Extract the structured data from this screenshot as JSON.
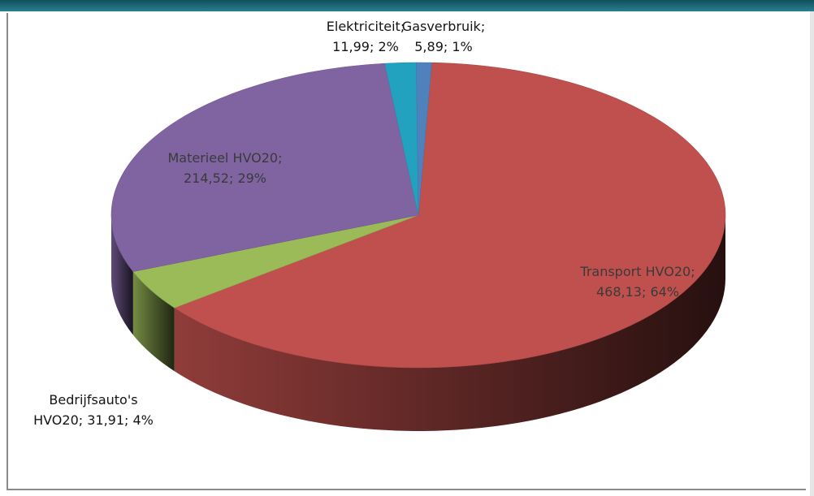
{
  "chart_data": {
    "type": "pie",
    "style": "3d",
    "slices": [
      {
        "label": "Transport HVO20",
        "value": 468.13,
        "percent": "64%",
        "display_value": "468,13",
        "color": "#c0504d"
      },
      {
        "label": "Bedrijfsauto's HVO20",
        "value": 31.91,
        "percent": "4%",
        "display_value": "31,91",
        "color": "#9bbb59"
      },
      {
        "label": "Materieel HVO20",
        "value": 214.52,
        "percent": "29%",
        "display_value": "214,52",
        "color": "#8064a2"
      },
      {
        "label": "Elektriciteit",
        "value": 11.99,
        "percent": "2%",
        "display_value": "11,99",
        "color": "#23a2bf"
      },
      {
        "label": "Gasverbruik",
        "value": 5.89,
        "percent": "1%",
        "display_value": "5,89",
        "color": "#4f81bd"
      }
    ],
    "labels": {
      "transport": {
        "line1": "Transport HVO20;",
        "line2": "468,13; 64%"
      },
      "materieel": {
        "line1": "Materieel HVO20;",
        "line2": "214,52; 29%"
      },
      "bedrijf": {
        "line1": "Bedrijfsauto's",
        "line2": "HVO20; 31,91; 4%"
      },
      "elektriciteit": {
        "line1": "Elektriciteit;",
        "line2": "11,99; 2%"
      },
      "gas": {
        "line1": "Gasverbruik;",
        "line2": "5,89; 1%"
      }
    }
  }
}
